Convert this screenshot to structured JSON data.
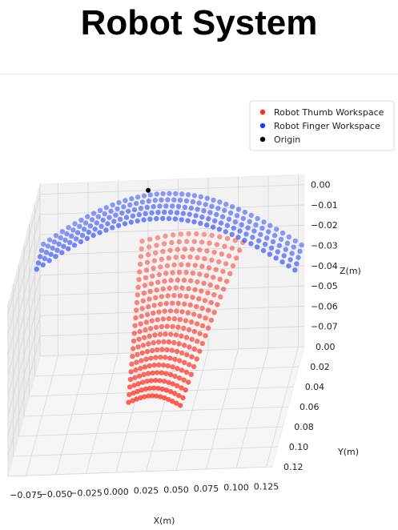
{
  "page": {
    "title": "Robot System"
  },
  "chart_data": {
    "type": "scatter3d",
    "title": "Robot System",
    "xlabel": "X(m)",
    "ylabel": "Y(m)",
    "zlabel": "Z(m)",
    "xlim": [
      -0.09,
      0.13
    ],
    "ylim": [
      0.0,
      0.12
    ],
    "zlim": [
      -0.08,
      0.005
    ],
    "x_ticks": [
      -0.075,
      -0.05,
      -0.025,
      0.0,
      0.025,
      0.05,
      0.075,
      0.1,
      0.125
    ],
    "x_tick_labels": [
      "−0.075",
      "−0.050",
      "−0.025",
      "0.000",
      "0.025",
      "0.050",
      "0.075",
      "0.100",
      "0.125"
    ],
    "y_ticks": [
      0.0,
      0.02,
      0.04,
      0.06,
      0.08,
      0.1,
      0.12
    ],
    "y_tick_labels": [
      "0.00",
      "0.02",
      "0.04",
      "0.06",
      "0.08",
      "0.10",
      "0.12"
    ],
    "z_ticks": [
      0.0,
      -0.01,
      -0.02,
      -0.03,
      -0.04,
      -0.05,
      -0.06,
      -0.07
    ],
    "z_tick_labels": [
      "0.00",
      "−0.01",
      "−0.02",
      "−0.03",
      "−0.04",
      "−0.05",
      "−0.06",
      "−0.07"
    ],
    "grid": true,
    "legend_position": "top-right",
    "series": [
      {
        "name": "Robot Thumb Workspace",
        "color": "#ff2a1a",
        "generator": "thumb_fan",
        "tip": [
          0.005,
          0.06,
          -0.075
        ],
        "base_x": [
          -0.005,
          0.08
        ],
        "base_z": [
          -0.025,
          -0.075
        ],
        "arcs": 22,
        "points_per_arc": 14
      },
      {
        "name": "Robot Finger Workspace",
        "color": "#1f3cff",
        "generator": "finger_arch",
        "x_range": [
          -0.085,
          0.13
        ],
        "z_range": [
          -0.03,
          0.003
        ],
        "y_range": [
          0.01,
          0.035
        ],
        "rows": 5,
        "points_per_row": 42
      },
      {
        "name": "Origin",
        "color": "#000000",
        "points": [
          [
            0.0,
            0.0,
            0.0
          ]
        ]
      }
    ]
  }
}
